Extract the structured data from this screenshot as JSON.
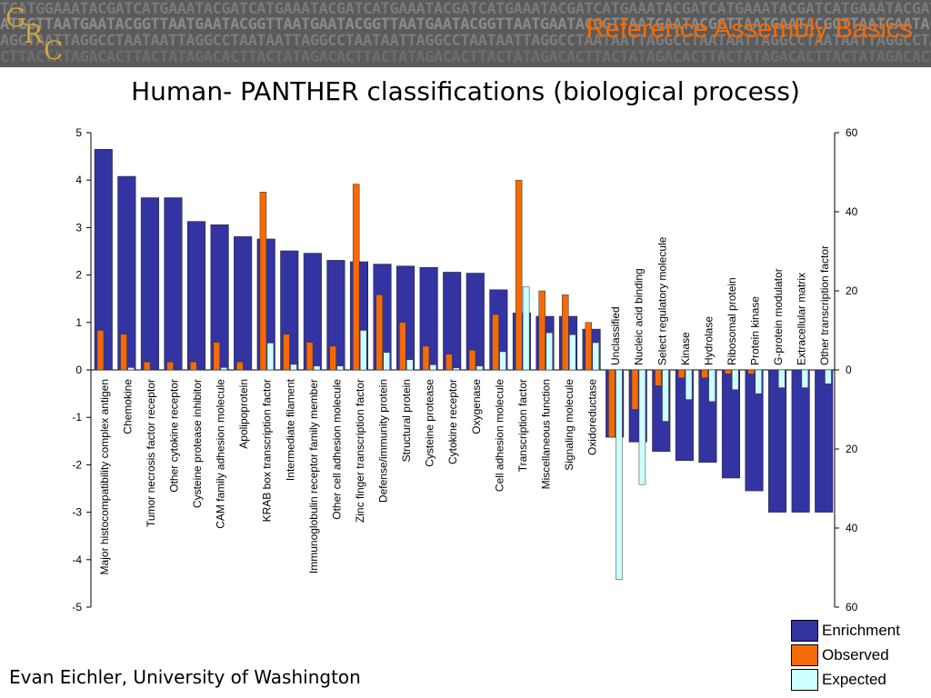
{
  "slide": {
    "deck_title": "Reference Assembly Basics",
    "logo": "GRC",
    "footer": "Evan Eichler, University of Washington"
  },
  "colors": {
    "enrichment": "#3333a1",
    "observed": "#f46a06",
    "expected": "#ccffff"
  },
  "chart_data": {
    "type": "bar",
    "title": "Human- PANTHER classifications (biological process)",
    "left_axis": {
      "ylim": [
        -5,
        5
      ],
      "ticks": [
        -5,
        -4,
        -3,
        -2,
        -1,
        0,
        1,
        2,
        3,
        4,
        5
      ]
    },
    "right_axis": {
      "ylim": [
        0,
        60
      ],
      "ticks": [
        0,
        20,
        40,
        60
      ],
      "direction": "mirrored about zero: positive bars rise, negative bars drop"
    },
    "categories": [
      "Major histocompatibility complex antigen",
      "Chemokine",
      "Tumor necrosis factor receptor",
      "Other cytokine receptor",
      "Cysteine protease inhibitor",
      "CAM family adhesion molecule",
      "Apolipoprotein",
      "KRAB box transcription factor",
      "Intermediate filament",
      "Immunoglobulin receptor family member",
      "Other cell adhesion molecule",
      "Zinc finger transcription factor",
      "Defense/immunity protein",
      "Structural protein",
      "Cysteine protease",
      "Cytokine receptor",
      "Oxygenase",
      "Cell adhesion molecule",
      "Transcription factor",
      "Miscellaneous function",
      "Signaling molecule",
      "Oxidoreductase",
      "Unclassified",
      "Nucleic acid binding",
      "Select regulatory molecule",
      "Kinase",
      "Hydrolase",
      "Ribosomal protein",
      "Protein kinase",
      "G-protein modulator",
      "Extracellular matrix",
      "Other transcription factor"
    ],
    "series": [
      {
        "name": "Enrichment",
        "axis": "left",
        "values": [
          4.65,
          4.08,
          3.63,
          3.63,
          3.13,
          3.06,
          2.81,
          2.76,
          2.51,
          2.46,
          2.31,
          2.28,
          2.23,
          2.19,
          2.16,
          2.06,
          2.04,
          1.69,
          1.2,
          1.13,
          1.13,
          0.86,
          -1.42,
          -1.52,
          -1.72,
          -1.91,
          -1.95,
          -2.28,
          -2.55,
          -3.0,
          -3.0,
          -3.0
        ]
      },
      {
        "name": "Observed",
        "axis": "right",
        "values": [
          10,
          9,
          2,
          2,
          2,
          7,
          2,
          45,
          9,
          7,
          6,
          47,
          19,
          12,
          6,
          4,
          5,
          14,
          48,
          20,
          19,
          12,
          17,
          10,
          4,
          2,
          2,
          1,
          1,
          0,
          0,
          0
        ]
      },
      {
        "name": "Expected",
        "axis": "right",
        "values": [
          0,
          0.6,
          0,
          0,
          0,
          0.6,
          0,
          6.8,
          1.4,
          1,
          1,
          10,
          4.4,
          2.6,
          1.3,
          0.5,
          1,
          4.6,
          21,
          9.4,
          8.9,
          6.9,
          53,
          29,
          13,
          7.5,
          8,
          5,
          6,
          4.5,
          4.5,
          3.5
        ]
      }
    ],
    "legend": [
      "Enrichment",
      "Observed",
      "Expected"
    ],
    "legend_position": "bottom-right"
  }
}
